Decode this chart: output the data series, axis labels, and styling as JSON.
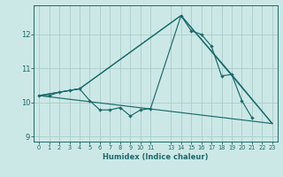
{
  "xlabel": "Humidex (Indice chaleur)",
  "bg_color": "#cce8e6",
  "grid_color": "#aaccca",
  "line_color": "#1a6b6b",
  "xlim": [
    -0.5,
    23.5
  ],
  "ylim": [
    8.85,
    12.85
  ],
  "yticks": [
    9,
    10,
    11,
    12
  ],
  "series_main": {
    "x": [
      0,
      1,
      2,
      3,
      4,
      5,
      6,
      7,
      8,
      9,
      10,
      11,
      14,
      15,
      16,
      17,
      18,
      19,
      20,
      21,
      22,
      23
    ],
    "y": [
      10.2,
      10.2,
      10.3,
      10.35,
      10.4,
      10.05,
      9.78,
      9.78,
      9.85,
      9.6,
      9.78,
      9.82,
      12.55,
      12.1,
      12.0,
      11.65,
      10.78,
      10.82,
      10.05,
      9.55,
      null,
      null
    ]
  },
  "series_lines": [
    {
      "x": [
        0,
        4,
        14,
        19,
        23
      ],
      "y": [
        10.2,
        10.4,
        12.55,
        10.82,
        9.38
      ]
    },
    {
      "x": [
        0,
        4,
        14,
        23
      ],
      "y": [
        10.2,
        10.4,
        12.55,
        9.38
      ]
    },
    {
      "x": [
        0,
        23
      ],
      "y": [
        10.2,
        9.38
      ]
    }
  ],
  "xtick_positions": [
    0,
    1,
    2,
    3,
    4,
    5,
    6,
    7,
    8,
    9,
    10,
    11,
    13,
    14,
    15,
    16,
    17,
    18,
    19,
    20,
    21,
    22,
    23
  ],
  "xtick_labels": [
    "0",
    "1",
    "2",
    "3",
    "4",
    "5",
    "6",
    "7",
    "8",
    "9",
    "10",
    "11",
    "13",
    "14",
    "15",
    "16",
    "17",
    "18",
    "19",
    "20",
    "21",
    "22",
    "23"
  ]
}
